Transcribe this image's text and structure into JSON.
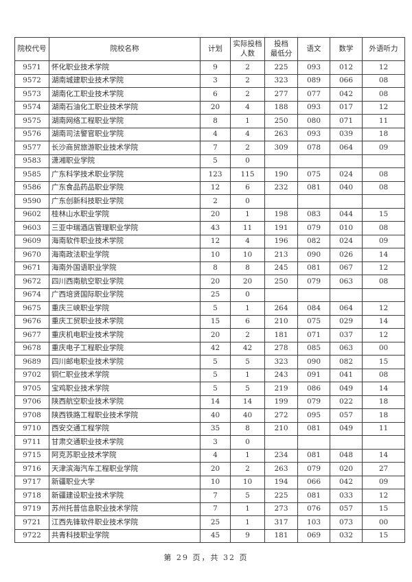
{
  "page": {
    "footer": "第 29 页，共 32 页"
  },
  "table": {
    "headers": [
      "院校代号",
      "院校名称",
      "计划",
      "实际投档\n人数",
      "投档\n最低分",
      "语文",
      "数学",
      "外语听力"
    ],
    "column_keys": [
      "college-code",
      "college-name",
      "plan",
      "actual-count",
      "min-score",
      "chinese-score",
      "math-score",
      "listening-score"
    ],
    "rows": [
      [
        "9571",
        "怀化职业技术学院",
        "9",
        "2",
        "225",
        "093",
        "012",
        "12"
      ],
      [
        "9572",
        "湖南城建职业技术学院",
        "3",
        "2",
        "323",
        "089",
        "066",
        "08"
      ],
      [
        "9573",
        "湖南化工职业技术学院",
        "6",
        "2",
        "277",
        "077",
        "042",
        "08"
      ],
      [
        "9574",
        "湖南石油化工职业技术学院",
        "20",
        "4",
        "188",
        "093",
        "017",
        "12"
      ],
      [
        "9575",
        "湖南网络工程职业学院",
        "8",
        "1",
        "250",
        "080",
        "071",
        "11"
      ],
      [
        "9576",
        "湖南司法警官职业学院",
        "4",
        "4",
        "263",
        "093",
        "039",
        "18"
      ],
      [
        "9577",
        "长沙商贸旅游职业技术学院",
        "7",
        "2",
        "309",
        "078",
        "064",
        "09"
      ],
      [
        "9583",
        "潇湘职业学院",
        "5",
        "0",
        "",
        "",
        "",
        ""
      ],
      [
        "9585",
        "广东科学技术职业学院",
        "123",
        "115",
        "190",
        "075",
        "024",
        "08"
      ],
      [
        "9586",
        "广东食品药品职业学院",
        "12",
        "6",
        "232",
        "081",
        "040",
        "08"
      ],
      [
        "9590",
        "广东创新科技职业学院",
        "2",
        "0",
        "",
        "",
        "",
        ""
      ],
      [
        "9602",
        "桂林山水职业学院",
        "20",
        "1",
        "198",
        "083",
        "044",
        "15"
      ],
      [
        "9603",
        "三亚中瑞酒店管理职业学院",
        "43",
        "11",
        "191",
        "079",
        "010",
        "08"
      ],
      [
        "9609",
        "海南软件职业技术学院",
        "12",
        "4",
        "196",
        "082",
        "024",
        "09"
      ],
      [
        "9670",
        "海南政法职业学院",
        "10",
        "10",
        "213",
        "090",
        "026",
        "14"
      ],
      [
        "9671",
        "海南外国语职业学院",
        "8",
        "8",
        "245",
        "081",
        "067",
        "12"
      ],
      [
        "9672",
        "四川西南航空职业学院",
        "20",
        "20",
        "250",
        "079",
        "063",
        "08"
      ],
      [
        "9674",
        "广西培贤国际职业学院",
        "25",
        "0",
        "",
        "",
        "",
        ""
      ],
      [
        "9675",
        "重庆三峡职业学院",
        "5",
        "1",
        "264",
        "084",
        "064",
        "12"
      ],
      [
        "9676",
        "重庆工贸职业技术学院",
        "15",
        "6",
        "210",
        "075",
        "029",
        "14"
      ],
      [
        "9677",
        "重庆机电职业技术学院",
        "20",
        "2",
        "181",
        "071",
        "037",
        "12"
      ],
      [
        "9678",
        "重庆电子工程职业学院",
        "42",
        "42",
        "278",
        "085",
        "063",
        "00"
      ],
      [
        "9689",
        "四川邮电职业技术学院",
        "5",
        "5",
        "323",
        "090",
        "082",
        "15"
      ],
      [
        "9702",
        "铜仁职业技术学院",
        "5",
        "1",
        "243",
        "091",
        "041",
        "08"
      ],
      [
        "9705",
        "宝鸡职业技术学院",
        "5",
        "5",
        "219",
        "086",
        "049",
        "14"
      ],
      [
        "9706",
        "陕西航空职业技术学院",
        "14",
        "14",
        "199",
        "079",
        "022",
        "18"
      ],
      [
        "9708",
        "陕西铁路工程职业技术学院",
        "40",
        "40",
        "272",
        "095",
        "057",
        "18"
      ],
      [
        "9710",
        "西安交通工程学院",
        "35",
        "8",
        "210",
        "081",
        "049",
        "11"
      ],
      [
        "9711",
        "甘肃交通职业技术学院",
        "3",
        "0",
        "",
        "",
        "",
        ""
      ],
      [
        "9715",
        "阿克苏职业技术学院",
        "4",
        "1",
        "234",
        "081",
        "048",
        "14"
      ],
      [
        "9716",
        "天津滨海汽车工程职业学院",
        "20",
        "2",
        "263",
        "079",
        "020",
        "27"
      ],
      [
        "9717",
        "新疆职业大学",
        "10",
        "10",
        "194",
        "066",
        "042",
        "09"
      ],
      [
        "9718",
        "新疆建设职业技术学院",
        "7",
        "5",
        "225",
        "081",
        "033",
        "12"
      ],
      [
        "9719",
        "苏州托普信息职业技术学院",
        "7",
        "1",
        "273",
        "076",
        "057",
        "15"
      ],
      [
        "9721",
        "江西先锋软件职业技术学院",
        "25",
        "1",
        "317",
        "103",
        "073",
        "00"
      ],
      [
        "9722",
        "共青科技职业学院",
        "45",
        "9",
        "181",
        "069",
        "032",
        "15"
      ]
    ]
  }
}
